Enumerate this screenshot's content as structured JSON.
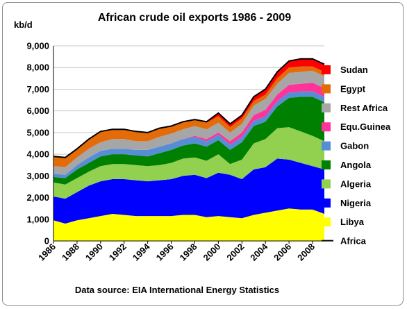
{
  "chart_data": {
    "type": "area",
    "title": "African crude oil exports 1986 - 2009",
    "ylabel": "kb/d",
    "xlabel": "",
    "source": "Data source: EIA International Energy Statistics",
    "ylim": [
      0,
      9000
    ],
    "yticks": [
      "0",
      "1,000",
      "2,000",
      "3,000",
      "4,000",
      "5,000",
      "6,000",
      "7,000",
      "8,000",
      "9,000"
    ],
    "xlim": [
      1986,
      2009
    ],
    "xticks": [
      "1986",
      "1988",
      "1990",
      "1992",
      "1994",
      "1996",
      "1998",
      "2000",
      "2002",
      "2004",
      "2006",
      "2008"
    ],
    "grid": true,
    "legend_position": "right",
    "x": [
      1986,
      1987,
      1988,
      1989,
      1990,
      1991,
      1992,
      1993,
      1994,
      1995,
      1996,
      1997,
      1998,
      1999,
      2000,
      2001,
      2002,
      2003,
      2004,
      2005,
      2006,
      2007,
      2008,
      2009
    ],
    "series": [
      {
        "name": "Libya",
        "color": "#ffff00",
        "values": [
          950,
          800,
          950,
          1050,
          1150,
          1250,
          1200,
          1150,
          1150,
          1150,
          1150,
          1200,
          1200,
          1100,
          1150,
          1100,
          1050,
          1200,
          1300,
          1400,
          1500,
          1450,
          1450,
          1250
        ]
      },
      {
        "name": "Nigeria",
        "color": "#0000ff",
        "values": [
          1100,
          1150,
          1300,
          1500,
          1600,
          1600,
          1650,
          1650,
          1600,
          1650,
          1700,
          1800,
          1850,
          1800,
          2000,
          1950,
          1800,
          2100,
          2100,
          2400,
          2250,
          2150,
          2000,
          2050
        ]
      },
      {
        "name": "Algeria",
        "color": "#92d050",
        "values": [
          650,
          650,
          650,
          650,
          700,
          700,
          700,
          700,
          700,
          700,
          750,
          800,
          800,
          800,
          850,
          500,
          900,
          1200,
          1300,
          1400,
          1500,
          1450,
          1400,
          1300
        ]
      },
      {
        "name": "Angola",
        "color": "#008000",
        "values": [
          250,
          300,
          400,
          400,
          450,
          450,
          450,
          450,
          450,
          550,
          600,
          600,
          650,
          650,
          650,
          650,
          800,
          800,
          800,
          1000,
          1350,
          1600,
          1800,
          1800
        ]
      },
      {
        "name": "Gabon",
        "color": "#558ed5",
        "values": [
          150,
          150,
          200,
          250,
          250,
          250,
          250,
          250,
          300,
          300,
          300,
          300,
          300,
          250,
          250,
          250,
          250,
          250,
          250,
          250,
          250,
          250,
          250,
          250
        ]
      },
      {
        "name": "Equ.Guinea",
        "color": "#ff3399",
        "values": [
          0,
          0,
          0,
          0,
          0,
          0,
          0,
          0,
          0,
          0,
          0,
          0,
          50,
          100,
          100,
          150,
          200,
          250,
          300,
          300,
          350,
          350,
          400,
          400
        ]
      },
      {
        "name": "Rest Africa",
        "color": "#a6a6a6",
        "values": [
          350,
          350,
          350,
          400,
          400,
          450,
          450,
          400,
          400,
          450,
          450,
          450,
          450,
          450,
          450,
          400,
          400,
          450,
          500,
          500,
          550,
          550,
          550,
          550
        ]
      },
      {
        "name": "Egypt",
        "color": "#e36c09",
        "values": [
          450,
          450,
          400,
          450,
          500,
          450,
          450,
          450,
          400,
          400,
          350,
          350,
          300,
          300,
          300,
          250,
          250,
          200,
          200,
          250,
          250,
          250,
          200,
          200
        ]
      },
      {
        "name": "Sudan",
        "color": "#ff0000",
        "values": [
          0,
          0,
          0,
          0,
          0,
          0,
          0,
          0,
          0,
          0,
          0,
          0,
          0,
          50,
          150,
          150,
          150,
          200,
          250,
          300,
          300,
          350,
          350,
          350
        ]
      }
    ],
    "total_line": {
      "name": "Africa",
      "color": "#000000"
    }
  }
}
